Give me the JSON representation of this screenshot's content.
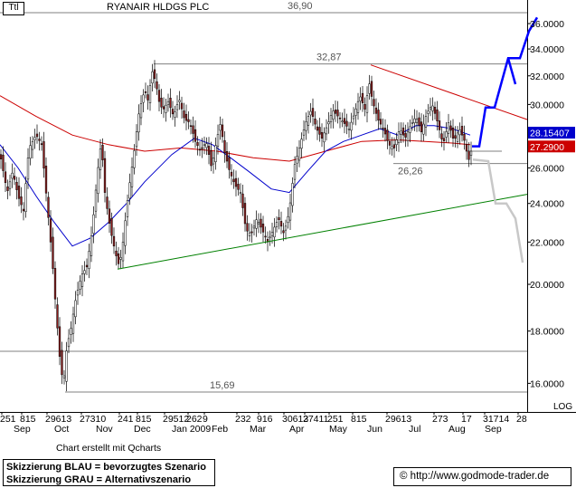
{
  "header": {
    "tag": "Ttl",
    "title": "RYANAIR HLDGS PLC"
  },
  "footer": {
    "credit": "Chart erstellt mit Qcharts",
    "website": "© http://www.godmode-trader.de",
    "notes": [
      "Skizzierung BLAU = bevorzugtes Szenario",
      "Skizzierung GRAU = Alternativszenario"
    ]
  },
  "scale_label": "LOG",
  "chart_data": {
    "type": "candlestick",
    "title": "RYANAIR HLDGS PLC",
    "y_scale": "log",
    "ylim": [
      15.0,
      37.2
    ],
    "y_ticks": [
      16,
      18,
      20,
      22,
      24,
      26,
      28,
      30,
      32,
      34,
      36
    ],
    "y_tick_labels": [
      "16.0000",
      "18.0000",
      "20.0000",
      "22.0000",
      "24.0000",
      "26.0000",
      "28.0000",
      "30.0000",
      "32.0000",
      "34.0000",
      "36.0000"
    ],
    "x_tick_labels": [
      "251",
      "815",
      "29613",
      "27310",
      "241",
      "815",
      "29512",
      "262",
      "9",
      "232",
      "916",
      "30613",
      "27411",
      "251",
      "815",
      "29613",
      "273",
      "17",
      "31714",
      "28"
    ],
    "x_month_labels": [
      "Sep",
      "Oct",
      "Nov",
      "Dec",
      "Jan 2009",
      "Feb",
      "Mar",
      "Apr",
      "May",
      "Jun",
      "Jul",
      "Aug",
      "Sep"
    ],
    "horizontal_levels": [
      {
        "label": "36,90",
        "value": 36.9
      },
      {
        "label": "32,87",
        "value": 32.87
      },
      {
        "label": "26,26",
        "value": 26.26
      },
      {
        "label": "15,69",
        "value": 15.69
      },
      {
        "label": "",
        "value": 17.2
      },
      {
        "label": "",
        "value": 27.0
      }
    ],
    "price_tags": [
      {
        "value": 28.15407,
        "label": "28.15407",
        "color": "#0000cc"
      },
      {
        "value": 27.29,
        "label": "27.2900",
        "color": "#cc0000"
      }
    ],
    "trendlines": [
      {
        "name": "support",
        "color": "#008000",
        "from": {
          "x": "Nov",
          "y": 20.7
        },
        "to": {
          "x": "Sep",
          "y": 24.5
        }
      },
      {
        "name": "resistance",
        "color": "#cc0000",
        "from": {
          "x": "Jun",
          "y": 32.8
        },
        "to": {
          "x": "Sep",
          "y": 29.0
        }
      }
    ],
    "moving_averages": [
      {
        "color": "#cc0000",
        "points": [
          [
            0,
            30.6
          ],
          [
            40,
            29.2
          ],
          [
            80,
            28.0
          ],
          [
            120,
            27.4
          ],
          [
            160,
            27.0
          ],
          [
            200,
            27.2
          ],
          [
            240,
            27.0
          ],
          [
            280,
            26.6
          ],
          [
            320,
            26.4
          ],
          [
            360,
            27.0
          ],
          [
            400,
            27.6
          ],
          [
            440,
            27.7
          ],
          [
            470,
            27.6
          ],
          [
            500,
            27.5
          ],
          [
            520,
            27.4
          ]
        ]
      },
      {
        "color": "#0000cc",
        "points": [
          [
            0,
            27.4
          ],
          [
            20,
            26.0
          ],
          [
            40,
            24.4
          ],
          [
            60,
            23.0
          ],
          [
            80,
            21.8
          ],
          [
            100,
            22.2
          ],
          [
            120,
            23.0
          ],
          [
            140,
            24.0
          ],
          [
            160,
            25.2
          ],
          [
            190,
            26.8
          ],
          [
            215,
            27.8
          ],
          [
            235,
            27.4
          ],
          [
            255,
            26.6
          ],
          [
            275,
            25.8
          ],
          [
            300,
            24.8
          ],
          [
            320,
            24.6
          ],
          [
            340,
            25.8
          ],
          [
            360,
            27.0
          ],
          [
            380,
            27.6
          ],
          [
            400,
            28.0
          ],
          [
            420,
            28.4
          ],
          [
            440,
            28.0
          ],
          [
            460,
            28.6
          ],
          [
            480,
            28.6
          ],
          [
            500,
            28.4
          ],
          [
            520,
            28.0
          ]
        ]
      }
    ],
    "close_path": [
      [
        0,
        26.8
      ],
      [
        8,
        24.6
      ],
      [
        14,
        25.8
      ],
      [
        20,
        24.4
      ],
      [
        26,
        23.6
      ],
      [
        32,
        27.2
      ],
      [
        40,
        28.0
      ],
      [
        46,
        27.4
      ],
      [
        52,
        24.0
      ],
      [
        58,
        21.0
      ],
      [
        62,
        18.8
      ],
      [
        66,
        17.0
      ],
      [
        70,
        15.9
      ],
      [
        74,
        17.4
      ],
      [
        78,
        18.0
      ],
      [
        84,
        19.4
      ],
      [
        90,
        20.4
      ],
      [
        96,
        20.8
      ],
      [
        102,
        22.6
      ],
      [
        108,
        25.8
      ],
      [
        112,
        27.6
      ],
      [
        116,
        24.6
      ],
      [
        120,
        23.2
      ],
      [
        124,
        22.2
      ],
      [
        128,
        21.4
      ],
      [
        132,
        20.8
      ],
      [
        136,
        22.0
      ],
      [
        142,
        24.6
      ],
      [
        148,
        26.8
      ],
      [
        154,
        29.6
      ],
      [
        160,
        31.0
      ],
      [
        164,
        30.2
      ],
      [
        168,
        32.4
      ],
      [
        172,
        31.6
      ],
      [
        176,
        30.2
      ],
      [
        180,
        29.6
      ],
      [
        186,
        30.2
      ],
      [
        192,
        29.2
      ],
      [
        198,
        30.4
      ],
      [
        204,
        29.0
      ],
      [
        210,
        28.8
      ],
      [
        216,
        27.6
      ],
      [
        222,
        27.0
      ],
      [
        228,
        27.6
      ],
      [
        234,
        26.0
      ],
      [
        240,
        27.8
      ],
      [
        244,
        28.8
      ],
      [
        248,
        27.0
      ],
      [
        254,
        25.8
      ],
      [
        260,
        25.0
      ],
      [
        266,
        24.6
      ],
      [
        272,
        22.6
      ],
      [
        278,
        22.4
      ],
      [
        284,
        23.2
      ],
      [
        290,
        22.6
      ],
      [
        296,
        22.0
      ],
      [
        302,
        22.6
      ],
      [
        308,
        23.2
      ],
      [
        314,
        22.4
      ],
      [
        320,
        23.6
      ],
      [
        326,
        26.2
      ],
      [
        332,
        27.4
      ],
      [
        338,
        28.8
      ],
      [
        344,
        29.6
      ],
      [
        350,
        28.4
      ],
      [
        356,
        27.8
      ],
      [
        362,
        28.6
      ],
      [
        368,
        29.6
      ],
      [
        374,
        29.2
      ],
      [
        380,
        28.8
      ],
      [
        386,
        28.4
      ],
      [
        392,
        29.4
      ],
      [
        398,
        30.6
      ],
      [
        404,
        29.6
      ],
      [
        408,
        31.6
      ],
      [
        412,
        30.2
      ],
      [
        418,
        29.0
      ],
      [
        424,
        28.4
      ],
      [
        430,
        27.4
      ],
      [
        436,
        27.2
      ],
      [
        442,
        28.4
      ],
      [
        448,
        27.8
      ],
      [
        454,
        28.6
      ],
      [
        460,
        29.2
      ],
      [
        466,
        28.2
      ],
      [
        472,
        29.4
      ],
      [
        478,
        30.0
      ],
      [
        484,
        28.8
      ],
      [
        490,
        27.4
      ],
      [
        496,
        28.8
      ],
      [
        502,
        27.6
      ],
      [
        508,
        28.4
      ],
      [
        514,
        27.6
      ],
      [
        518,
        26.4
      ],
      [
        522,
        27.2
      ]
    ],
    "scenario_blue": [
      [
        522,
        27.3
      ],
      [
        530,
        27.3
      ],
      [
        537,
        29.8
      ],
      [
        547,
        29.8
      ],
      [
        562,
        33.3
      ],
      [
        575,
        33.3
      ],
      [
        585,
        35.4
      ],
      [
        594,
        36.5
      ]
    ],
    "scenario_blue_branch": [
      [
        562,
        33.3
      ],
      [
        570,
        31.4
      ]
    ],
    "scenario_grey": [
      [
        523,
        26.5
      ],
      [
        540,
        26.4
      ],
      [
        548,
        24.0
      ],
      [
        560,
        24.0
      ],
      [
        570,
        23.2
      ],
      [
        578,
        21.0
      ]
    ]
  }
}
